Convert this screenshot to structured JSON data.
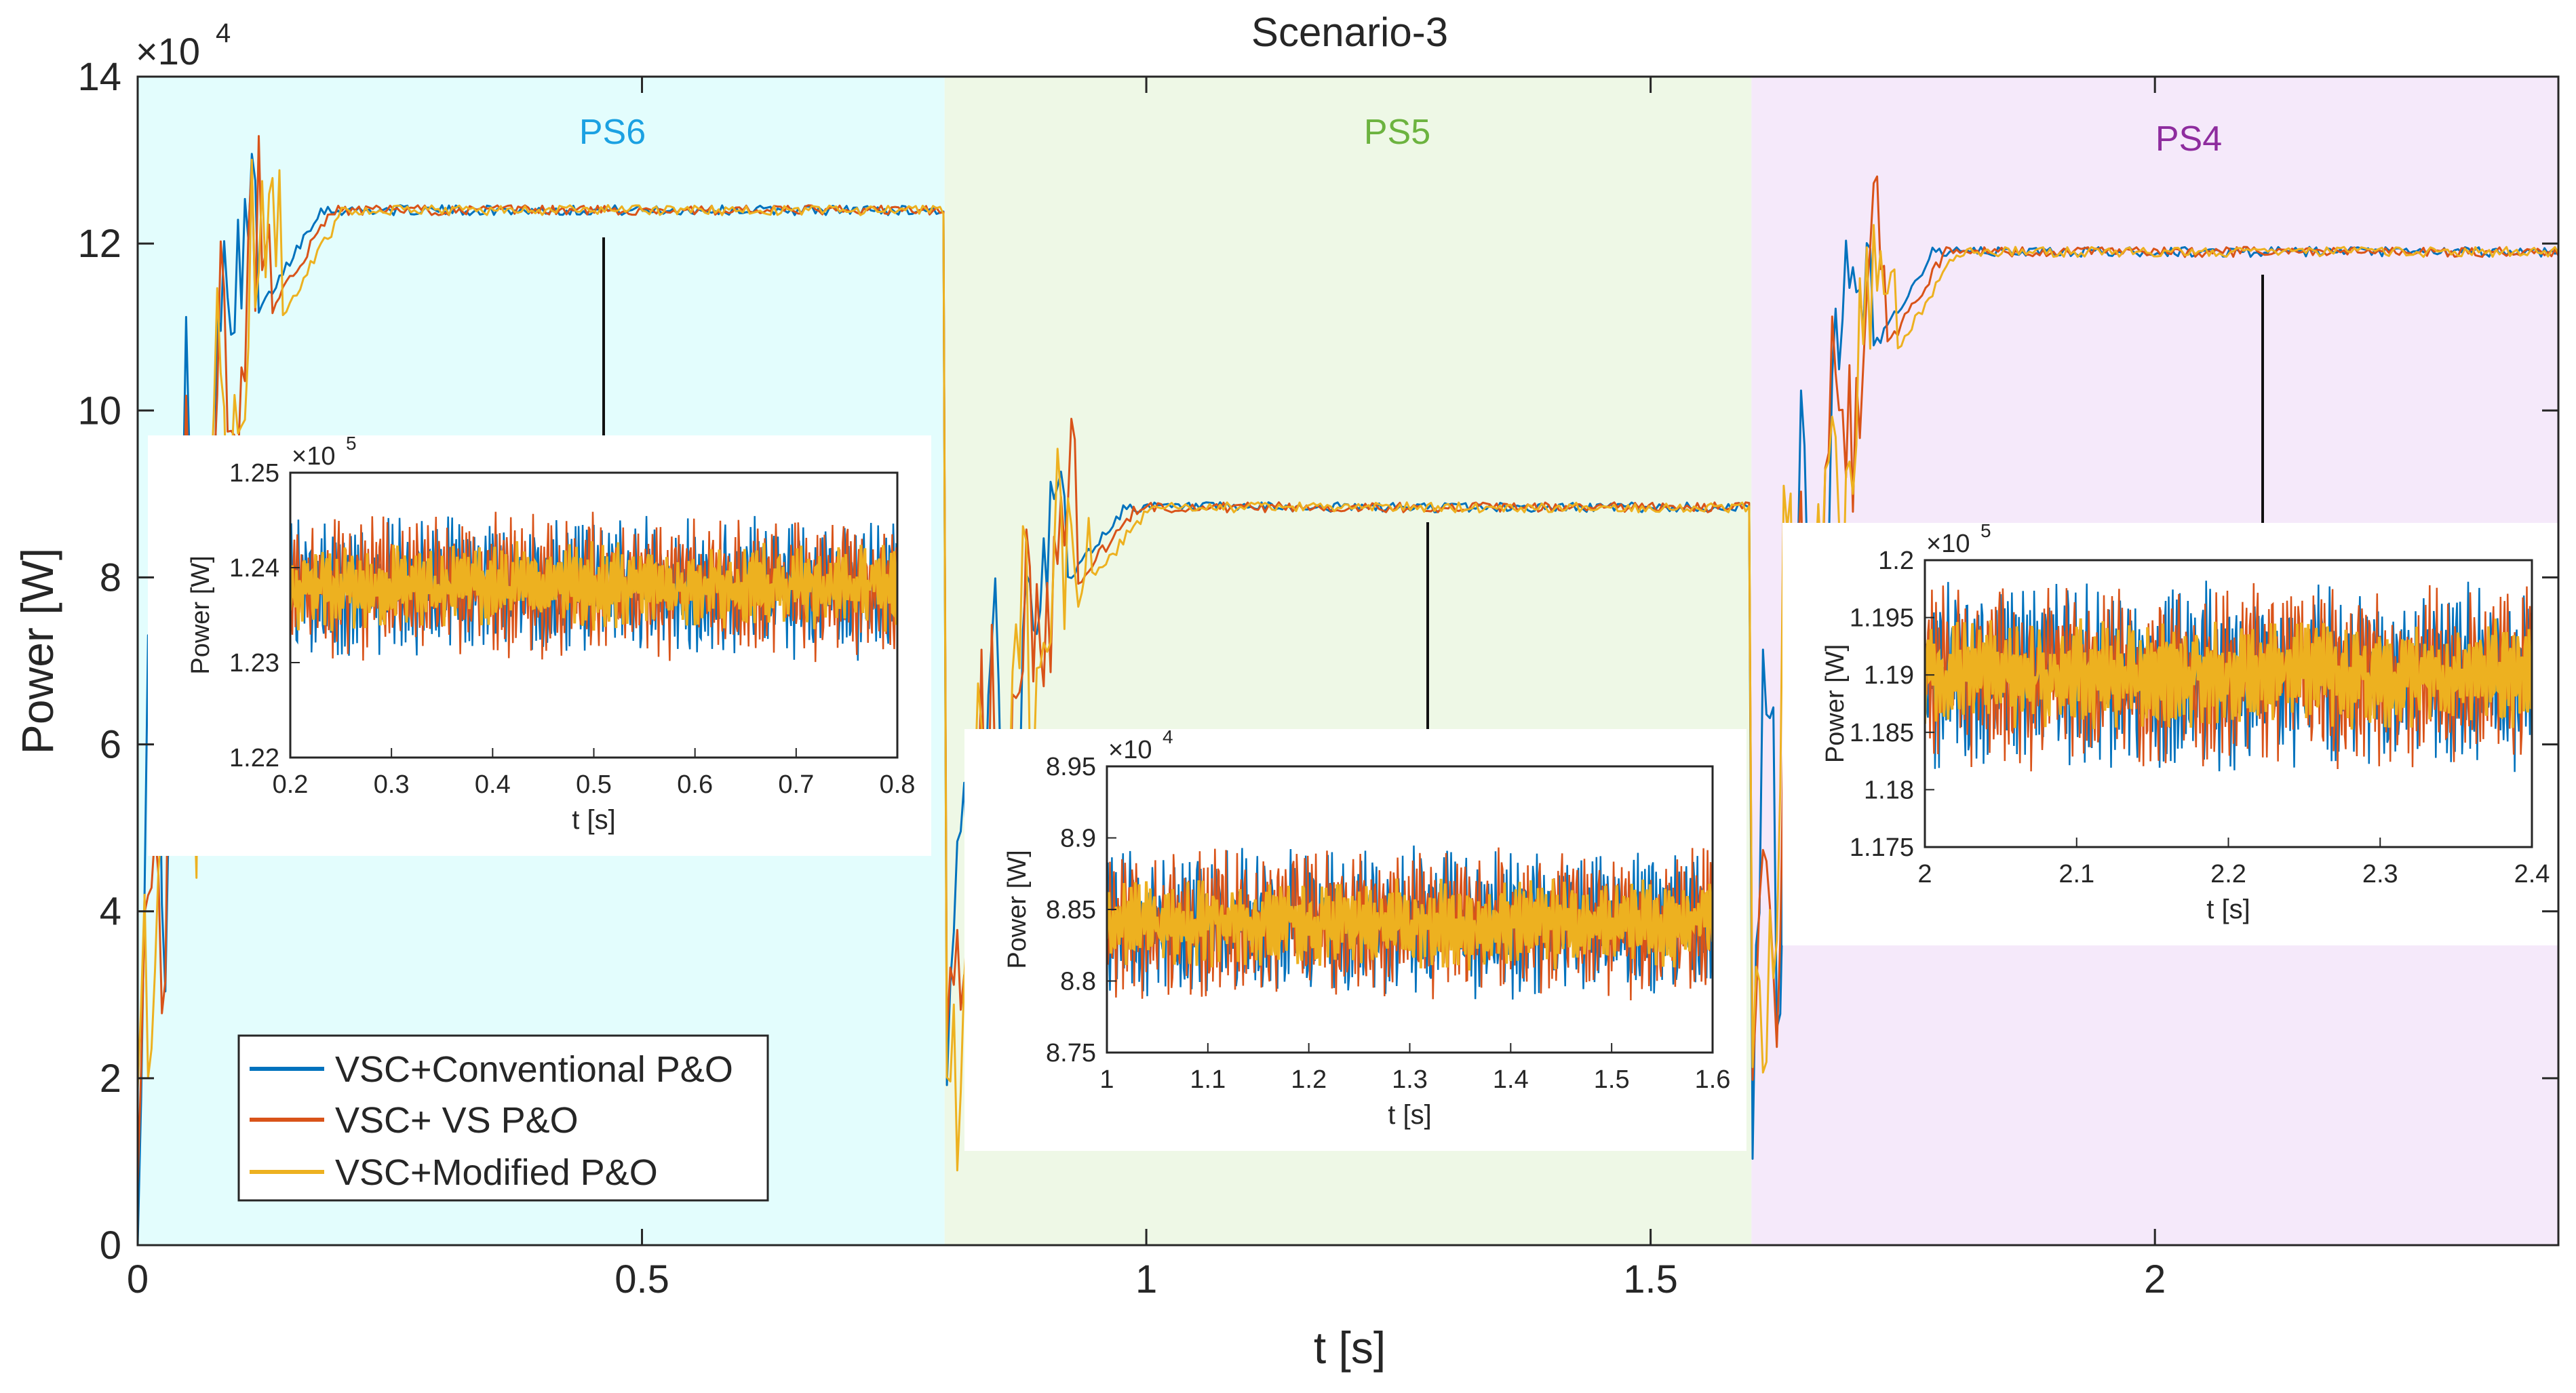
{
  "chart_data": {
    "type": "line",
    "title": "Scenario-3",
    "xlabel": "t [s]",
    "ylabel": "Power [W]",
    "xlim": [
      0,
      2.4
    ],
    "ylim": [
      0,
      140000
    ],
    "xticks": [
      "0",
      "0.5",
      "1",
      "1.5",
      "2"
    ],
    "yticks": [
      "0",
      "2",
      "4",
      "6",
      "8",
      "10",
      "12",
      "14"
    ],
    "y_multiplier": "×10",
    "y_multiplier_exp": "4",
    "colors": {
      "conventional": "#0072BD",
      "vs": "#D95319",
      "modified": "#EDB120",
      "ps6_bg": "#E3FDFD",
      "ps5_bg": "#EEF8E6",
      "ps4_bg": "#F5E9FA",
      "ps6_label": "#1BA1E2",
      "ps5_label": "#6CB33F",
      "ps4_label": "#8E2C9E"
    },
    "regions": [
      {
        "label": "PS6",
        "t_start": 0.0,
        "t_end": 0.8,
        "color_key": "ps6"
      },
      {
        "label": "PS5",
        "t_start": 0.8,
        "t_end": 1.6,
        "color_key": "ps5"
      },
      {
        "label": "PS4",
        "t_start": 1.6,
        "t_end": 2.4,
        "color_key": "ps4"
      }
    ],
    "legend": {
      "placement": "bottom-left",
      "entries": [
        "VSC+Conventional P&O",
        "VSC+ VS P&O",
        "VSC+Modified P&O"
      ]
    },
    "series": [
      {
        "name": "VSC+Conventional P&O",
        "key": "conventional",
        "steady_values": [
          124000,
          88400,
          119000
        ]
      },
      {
        "name": "VSC+ VS P&O",
        "key": "vs",
        "steady_values": [
          124000,
          88400,
          119000
        ]
      },
      {
        "name": "VSC+Modified P&O",
        "key": "modified",
        "steady_values": [
          124000,
          88400,
          119000
        ]
      }
    ],
    "insets": [
      {
        "id": "ps6",
        "xlabel": "t [s]",
        "ylabel": "Power [W]",
        "xlim": [
          0.2,
          0.8
        ],
        "ylim": [
          122000,
          125000
        ],
        "xticks": [
          "0.2",
          "0.3",
          "0.4",
          "0.5",
          "0.6",
          "0.7",
          "0.8"
        ],
        "yticks": [
          "1.22",
          "1.23",
          "1.24",
          "1.25"
        ],
        "multiplier": "×10",
        "multiplier_exp": "5",
        "mean": 123800,
        "amplitude": 800
      },
      {
        "id": "ps5",
        "xlabel": "t [s]",
        "ylabel": "Power [W]",
        "xlim": [
          1.0,
          1.6
        ],
        "ylim": [
          87500,
          89500
        ],
        "xticks": [
          "1",
          "1.1",
          "1.2",
          "1.3",
          "1.4",
          "1.5",
          "1.6"
        ],
        "yticks": [
          "8.75",
          "8.8",
          "8.85",
          "8.9",
          "8.95"
        ],
        "multiplier": "×10",
        "multiplier_exp": "4",
        "mean": 88400,
        "amplitude": 550
      },
      {
        "id": "ps4",
        "xlabel": "t [s]",
        "ylabel": "Power [W]",
        "xlim": [
          2.0,
          2.4
        ],
        "ylim": [
          117500,
          120000
        ],
        "xticks": [
          "2",
          "2.1",
          "2.2",
          "2.3",
          "2.4"
        ],
        "yticks": [
          "1.175",
          "1.18",
          "1.185",
          "1.19",
          "1.195",
          "1.2"
        ],
        "multiplier": "×10",
        "multiplier_exp": "5",
        "mean": 119000,
        "amplitude": 850
      }
    ]
  }
}
